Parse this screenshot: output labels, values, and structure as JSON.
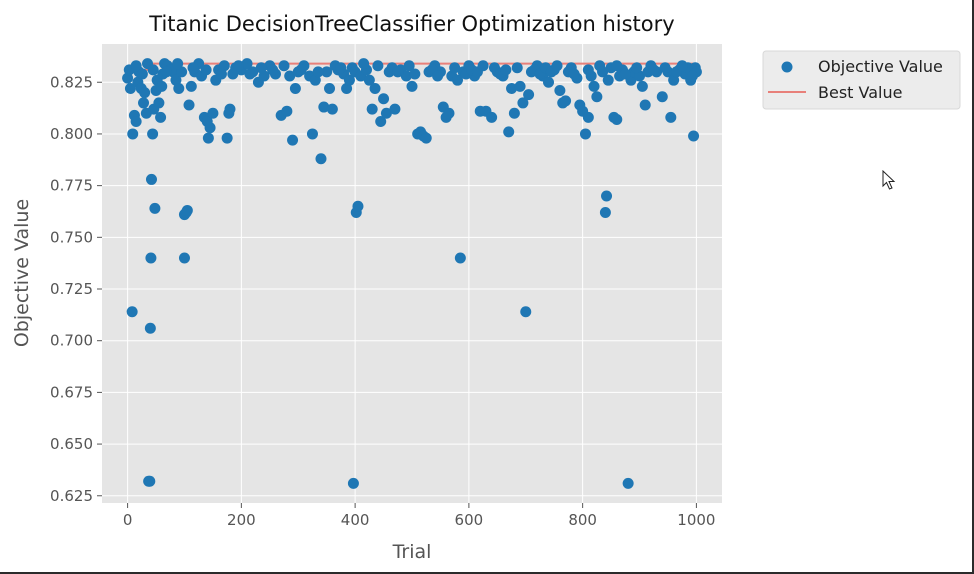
{
  "chart_data": {
    "type": "scatter",
    "title": "Titanic DecisionTreeClassifier Optimization history",
    "xlabel": "Trial",
    "ylabel": "Objective Value",
    "xlim": [
      -45,
      1045
    ],
    "ylim": [
      0.6215,
      0.8435
    ],
    "xticks": [
      0,
      200,
      400,
      600,
      800,
      1000
    ],
    "yticks": [
      0.625,
      0.65,
      0.675,
      0.7,
      0.725,
      0.75,
      0.775,
      0.8,
      0.825
    ],
    "xtick_labels": [
      "0",
      "200",
      "400",
      "600",
      "800",
      "1000"
    ],
    "ytick_labels": [
      "0.625",
      "0.650",
      "0.675",
      "0.700",
      "0.725",
      "0.750",
      "0.775",
      "0.800",
      "0.825"
    ],
    "grid": true,
    "legend_position": "outside-right-top",
    "colors": {
      "objective": "#1f77b4",
      "best": "#e8807a",
      "panel": "#e5e5e5",
      "grid": "#ffffff"
    },
    "series": [
      {
        "name": "Objective Value",
        "kind": "scatter",
        "points": [
          [
            0,
            0.827
          ],
          [
            3,
            0.831
          ],
          [
            5,
            0.822
          ],
          [
            8,
            0.714
          ],
          [
            9,
            0.8
          ],
          [
            12,
            0.809
          ],
          [
            15,
            0.806
          ],
          [
            18,
            0.825
          ],
          [
            20,
            0.83
          ],
          [
            24,
            0.822
          ],
          [
            28,
            0.815
          ],
          [
            30,
            0.82
          ],
          [
            33,
            0.81
          ],
          [
            35,
            0.834
          ],
          [
            37,
            0.632
          ],
          [
            39,
            0.632
          ],
          [
            40,
            0.706
          ],
          [
            41,
            0.74
          ],
          [
            42,
            0.778
          ],
          [
            44,
            0.8
          ],
          [
            46,
            0.812
          ],
          [
            48,
            0.764
          ],
          [
            50,
            0.821
          ],
          [
            52,
            0.826
          ],
          [
            55,
            0.815
          ],
          [
            58,
            0.808
          ],
          [
            60,
            0.823
          ],
          [
            62,
            0.829
          ],
          [
            65,
            0.834
          ],
          [
            70,
            0.833
          ],
          [
            75,
            0.831
          ],
          [
            80,
            0.83
          ],
          [
            85,
            0.826
          ],
          [
            90,
            0.822
          ],
          [
            95,
            0.83
          ],
          [
            100,
            0.761
          ],
          [
            100,
            0.74
          ],
          [
            103,
            0.762
          ],
          [
            105,
            0.763
          ],
          [
            108,
            0.814
          ],
          [
            112,
            0.823
          ],
          [
            118,
            0.83
          ],
          [
            125,
            0.834
          ],
          [
            130,
            0.828
          ],
          [
            135,
            0.808
          ],
          [
            140,
            0.806
          ],
          [
            142,
            0.798
          ],
          [
            145,
            0.803
          ],
          [
            150,
            0.81
          ],
          [
            155,
            0.826
          ],
          [
            160,
            0.831
          ],
          [
            170,
            0.833
          ],
          [
            175,
            0.798
          ],
          [
            178,
            0.81
          ],
          [
            180,
            0.812
          ],
          [
            185,
            0.829
          ],
          [
            190,
            0.832
          ],
          [
            200,
            0.831
          ],
          [
            210,
            0.834
          ],
          [
            220,
            0.83
          ],
          [
            230,
            0.825
          ],
          [
            240,
            0.828
          ],
          [
            250,
            0.833
          ],
          [
            260,
            0.829
          ],
          [
            270,
            0.809
          ],
          [
            280,
            0.811
          ],
          [
            285,
            0.828
          ],
          [
            290,
            0.797
          ],
          [
            295,
            0.822
          ],
          [
            300,
            0.83
          ],
          [
            310,
            0.833
          ],
          [
            320,
            0.828
          ],
          [
            325,
            0.8
          ],
          [
            330,
            0.826
          ],
          [
            340,
            0.788
          ],
          [
            345,
            0.813
          ],
          [
            350,
            0.83
          ],
          [
            355,
            0.822
          ],
          [
            360,
            0.812
          ],
          [
            370,
            0.831
          ],
          [
            380,
            0.829
          ],
          [
            385,
            0.822
          ],
          [
            390,
            0.826
          ],
          [
            395,
            0.832
          ],
          [
            397,
            0.631
          ],
          [
            400,
            0.83
          ],
          [
            402,
            0.762
          ],
          [
            405,
            0.765
          ],
          [
            410,
            0.828
          ],
          [
            420,
            0.831
          ],
          [
            425,
            0.826
          ],
          [
            430,
            0.812
          ],
          [
            435,
            0.822
          ],
          [
            440,
            0.833
          ],
          [
            445,
            0.806
          ],
          [
            450,
            0.817
          ],
          [
            455,
            0.81
          ],
          [
            460,
            0.83
          ],
          [
            470,
            0.812
          ],
          [
            480,
            0.831
          ],
          [
            490,
            0.828
          ],
          [
            500,
            0.823
          ],
          [
            510,
            0.8
          ],
          [
            515,
            0.801
          ],
          [
            520,
            0.799
          ],
          [
            525,
            0.798
          ],
          [
            530,
            0.83
          ],
          [
            540,
            0.833
          ],
          [
            550,
            0.83
          ],
          [
            555,
            0.813
          ],
          [
            560,
            0.808
          ],
          [
            565,
            0.81
          ],
          [
            570,
            0.828
          ],
          [
            580,
            0.826
          ],
          [
            585,
            0.74
          ],
          [
            590,
            0.83
          ],
          [
            600,
            0.833
          ],
          [
            610,
            0.828
          ],
          [
            620,
            0.811
          ],
          [
            630,
            0.811
          ],
          [
            640,
            0.808
          ],
          [
            650,
            0.83
          ],
          [
            660,
            0.828
          ],
          [
            670,
            0.801
          ],
          [
            675,
            0.822
          ],
          [
            680,
            0.81
          ],
          [
            690,
            0.823
          ],
          [
            695,
            0.815
          ],
          [
            700,
            0.714
          ],
          [
            705,
            0.819
          ],
          [
            710,
            0.83
          ],
          [
            720,
            0.833
          ],
          [
            730,
            0.828
          ],
          [
            740,
            0.825
          ],
          [
            750,
            0.831
          ],
          [
            760,
            0.821
          ],
          [
            765,
            0.815
          ],
          [
            770,
            0.816
          ],
          [
            780,
            0.832
          ],
          [
            790,
            0.827
          ],
          [
            795,
            0.814
          ],
          [
            800,
            0.811
          ],
          [
            805,
            0.8
          ],
          [
            810,
            0.808
          ],
          [
            815,
            0.828
          ],
          [
            820,
            0.823
          ],
          [
            825,
            0.818
          ],
          [
            830,
            0.833
          ],
          [
            835,
            0.83
          ],
          [
            840,
            0.762
          ],
          [
            842,
            0.77
          ],
          [
            845,
            0.826
          ],
          [
            850,
            0.832
          ],
          [
            855,
            0.808
          ],
          [
            860,
            0.807
          ],
          [
            865,
            0.828
          ],
          [
            870,
            0.831
          ],
          [
            880,
            0.631
          ],
          [
            885,
            0.826
          ],
          [
            890,
            0.83
          ],
          [
            900,
            0.828
          ],
          [
            905,
            0.823
          ],
          [
            910,
            0.814
          ],
          [
            920,
            0.833
          ],
          [
            930,
            0.83
          ],
          [
            940,
            0.818
          ],
          [
            950,
            0.83
          ],
          [
            955,
            0.808
          ],
          [
            960,
            0.826
          ],
          [
            970,
            0.831
          ],
          [
            980,
            0.829
          ],
          [
            985,
            0.832
          ],
          [
            990,
            0.826
          ],
          [
            995,
            0.799
          ],
          [
            998,
            0.832
          ],
          [
            1000,
            0.83
          ],
          [
            15,
            0.833
          ],
          [
            26,
            0.829
          ],
          [
            45,
            0.831
          ],
          [
            68,
            0.83
          ],
          [
            88,
            0.834
          ],
          [
            115,
            0.832
          ],
          [
            138,
            0.831
          ],
          [
            165,
            0.829
          ],
          [
            195,
            0.833
          ],
          [
            215,
            0.829
          ],
          [
            235,
            0.832
          ],
          [
            255,
            0.831
          ],
          [
            275,
            0.833
          ],
          [
            305,
            0.831
          ],
          [
            335,
            0.83
          ],
          [
            365,
            0.833
          ],
          [
            375,
            0.832
          ],
          [
            415,
            0.834
          ],
          [
            465,
            0.832
          ],
          [
            475,
            0.83
          ],
          [
            495,
            0.833
          ],
          [
            505,
            0.829
          ],
          [
            535,
            0.831
          ],
          [
            545,
            0.828
          ],
          [
            575,
            0.832
          ],
          [
            595,
            0.829
          ],
          [
            605,
            0.831
          ],
          [
            615,
            0.83
          ],
          [
            625,
            0.833
          ],
          [
            645,
            0.832
          ],
          [
            655,
            0.829
          ],
          [
            665,
            0.831
          ],
          [
            685,
            0.832
          ],
          [
            715,
            0.831
          ],
          [
            725,
            0.829
          ],
          [
            735,
            0.832
          ],
          [
            745,
            0.83
          ],
          [
            755,
            0.833
          ],
          [
            775,
            0.83
          ],
          [
            785,
            0.829
          ],
          [
            810,
            0.831
          ],
          [
            860,
            0.833
          ],
          [
            875,
            0.829
          ],
          [
            895,
            0.832
          ],
          [
            915,
            0.83
          ],
          [
            925,
            0.831
          ],
          [
            945,
            0.832
          ],
          [
            965,
            0.83
          ],
          [
            975,
            0.833
          ],
          [
            993,
            0.828
          ]
        ]
      },
      {
        "name": "Best Value",
        "kind": "step-line",
        "points": [
          [
            0,
            0.827
          ],
          [
            3,
            0.831
          ],
          [
            35,
            0.834
          ],
          [
            125,
            0.834
          ],
          [
            210,
            0.834
          ],
          [
            1000,
            0.834
          ]
        ]
      }
    ]
  }
}
